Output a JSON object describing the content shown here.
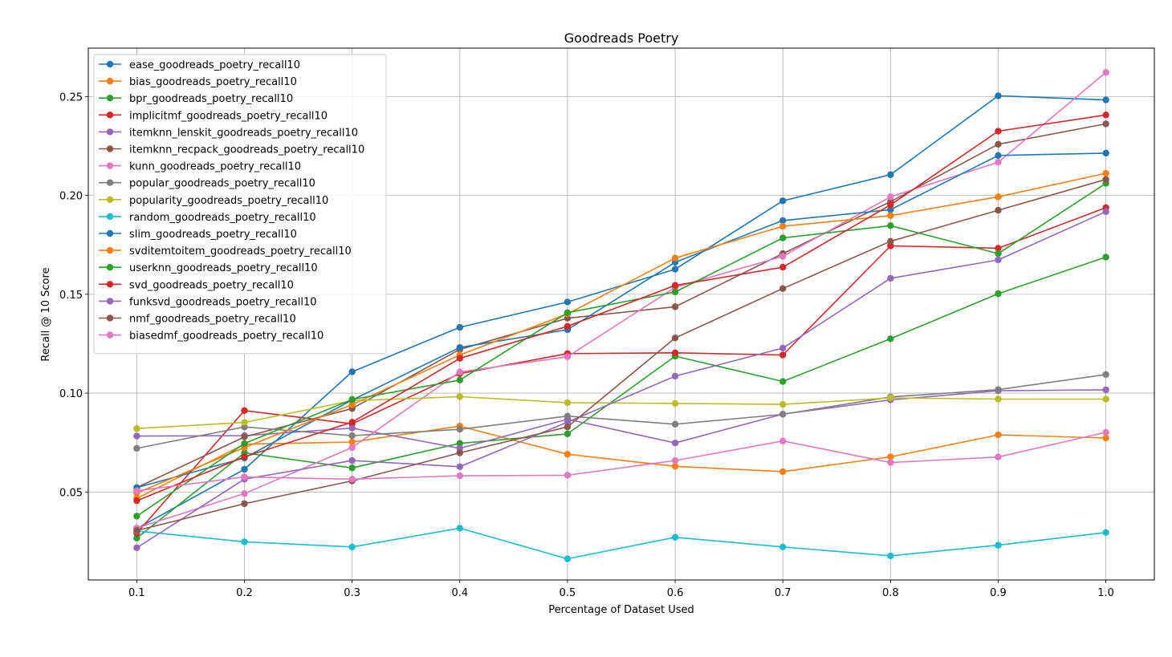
{
  "chart_data": {
    "type": "line",
    "title": "Goodreads Poetry",
    "xlabel": "Percentage of Dataset Used",
    "ylabel": "Recall @ 10 Score",
    "x": [
      0.1,
      0.2,
      0.3,
      0.4,
      0.5,
      0.6,
      0.7,
      0.8,
      0.9,
      1.0
    ],
    "x_tick_labels": [
      "0.1",
      "0.2",
      "0.3",
      "0.4",
      "0.5",
      "0.6",
      "0.7",
      "0.8",
      "0.9",
      "1.0"
    ],
    "y_ticks": [
      0.05,
      0.1,
      0.15,
      0.2,
      0.25
    ],
    "y_tick_labels": [
      "0.05",
      "0.10",
      "0.15",
      "0.20",
      "0.25"
    ],
    "xlim": [
      0.055,
      1.045
    ],
    "ylim": [
      0.0055,
      0.2745
    ],
    "grid": true,
    "legend_position": "upper-left",
    "series": [
      {
        "name": "ease_goodreads_poetry_recall10",
        "color": "#1f77b4",
        "values": [
          0.0315,
          0.0615,
          0.1108,
          0.1333,
          0.1461,
          0.1627,
          0.1973,
          0.2105,
          0.2504,
          0.2483
        ]
      },
      {
        "name": "bias_goodreads_poetry_recall10",
        "color": "#ff7f0e",
        "values": [
          0.0468,
          0.0742,
          0.0753,
          0.0833,
          0.0691,
          0.063,
          0.0603,
          0.0678,
          0.0789,
          0.0773
        ]
      },
      {
        "name": "bpr_goodreads_poetry_recall10",
        "color": "#2ca02c",
        "values": [
          0.0267,
          0.0698,
          0.0622,
          0.0746,
          0.0794,
          0.1187,
          0.1059,
          0.1275,
          0.1503,
          0.1688
        ]
      },
      {
        "name": "implicitmf_goodreads_poetry_recall10",
        "color": "#d62728",
        "values": [
          0.0292,
          0.0912,
          0.0845,
          0.1099,
          0.12,
          0.1204,
          0.1193,
          0.1745,
          0.1733,
          0.1938
        ]
      },
      {
        "name": "itemknn_lenskit_goodreads_poetry_recall10",
        "color": "#9467bd",
        "values": [
          0.0783,
          0.0785,
          0.0823,
          0.0721,
          0.0868,
          0.0748,
          0.0894,
          0.0966,
          0.1012,
          0.1017
        ]
      },
      {
        "name": "itemknn_recpack_goodreads_poetry_recall10",
        "color": "#8c564b",
        "values": [
          0.0522,
          0.0779,
          0.0922,
          0.1221,
          0.1379,
          0.1437,
          0.1706,
          0.1969,
          0.2259,
          0.2362
        ]
      },
      {
        "name": "kunn_goodreads_poetry_recall10",
        "color": "#e377c2",
        "values": [
          0.0318,
          0.0492,
          0.0725,
          0.1107,
          0.1184,
          0.1535,
          0.1692,
          0.1993,
          0.2168,
          0.2622
        ]
      },
      {
        "name": "popular_goodreads_poetry_recall10",
        "color": "#7f7f7f",
        "values": [
          0.0721,
          0.0829,
          0.0785,
          0.0817,
          0.0884,
          0.0843,
          0.0893,
          0.0981,
          0.1018,
          0.1094
        ]
      },
      {
        "name": "popularity_goodreads_poetry_recall10",
        "color": "#bcbd22",
        "values": [
          0.0821,
          0.0852,
          0.0962,
          0.0982,
          0.0952,
          0.0948,
          0.0943,
          0.0976,
          0.097,
          0.097
        ]
      },
      {
        "name": "random_goodreads_poetry_recall10",
        "color": "#17becf",
        "values": [
          0.0303,
          0.0248,
          0.0222,
          0.0317,
          0.0162,
          0.0271,
          0.0222,
          0.0177,
          0.0231,
          0.0295
        ]
      },
      {
        "name": "slim_goodreads_poetry_recall10",
        "color": "#1f77b4",
        "values": [
          0.0522,
          0.0672,
          0.0965,
          0.1231,
          0.1321,
          0.1662,
          0.1873,
          0.1928,
          0.2202,
          0.2214
        ]
      },
      {
        "name": "svditemtoitem_goodreads_poetry_recall10",
        "color": "#ff7f0e",
        "values": [
          0.0495,
          0.0725,
          0.0942,
          0.1193,
          0.1401,
          0.1683,
          0.1844,
          0.1898,
          0.1993,
          0.2112
        ]
      },
      {
        "name": "userknn_goodreads_poetry_recall10",
        "color": "#2ca02c",
        "values": [
          0.0378,
          0.0745,
          0.0968,
          0.1066,
          0.1407,
          0.1512,
          0.1785,
          0.1847,
          0.1706,
          0.2061
        ]
      },
      {
        "name": "svd_goodreads_poetry_recall10",
        "color": "#d62728",
        "values": [
          0.0456,
          0.0678,
          0.0853,
          0.1176,
          0.1338,
          0.1545,
          0.1637,
          0.1952,
          0.2325,
          0.2407
        ]
      },
      {
        "name": "funksvd_goodreads_poetry_recall10",
        "color": "#9467bd",
        "values": [
          0.0218,
          0.0565,
          0.0659,
          0.0628,
          0.0853,
          0.1086,
          0.1228,
          0.1581,
          0.1674,
          0.1918
        ]
      },
      {
        "name": "nmf_goodreads_poetry_recall10",
        "color": "#8c564b",
        "values": [
          0.0305,
          0.0441,
          0.0556,
          0.0698,
          0.0829,
          0.1279,
          0.1529,
          0.1768,
          0.1925,
          0.2081
        ]
      },
      {
        "name": "biasedmf_goodreads_poetry_recall10",
        "color": "#e377c2",
        "values": [
          0.0506,
          0.0576,
          0.0565,
          0.0582,
          0.0585,
          0.0659,
          0.0758,
          0.0649,
          0.0677,
          0.0802
        ]
      }
    ]
  }
}
